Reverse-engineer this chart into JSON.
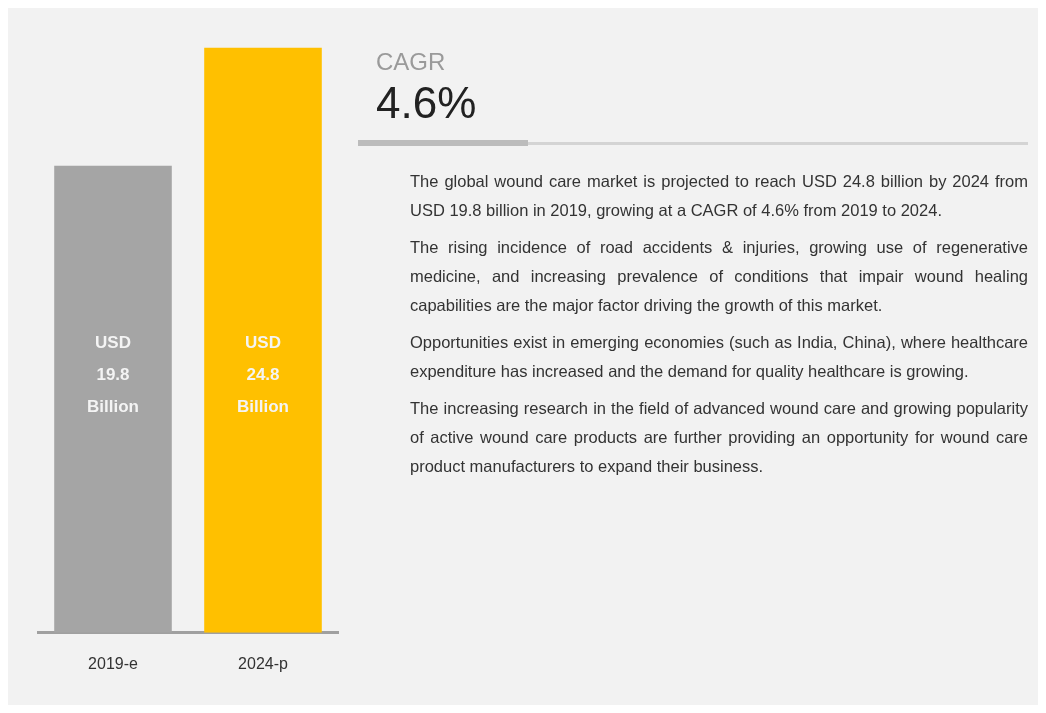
{
  "chart_data": [
    {
      "type": "bar",
      "categories": [
        "2019-e",
        "2024-p"
      ],
      "values": [
        19.8,
        24.8
      ],
      "colors": [
        "#a5a5a5",
        "#ffc000"
      ],
      "value_labels": [
        "USD 19.8 Billion",
        "USD 24.8 Billion"
      ]
    },
    {
      "type": "other",
      "title": "CAGR",
      "subtitle": "4.6%",
      "annotations": [
        "The global wound care market is projected to reach USD 24.8 billion by 2024 from USD 19.8 billion in 2019, growing at a CAGR of 4.6% from 2019 to 2024.",
        "The rising incidence of road accidents & injuries, growing use of regenerative medicine, and increasing prevalence of conditions that impair wound healing capabilities are the major factor driving the growth of this market.",
        "Opportunities exist in emerging economies (such as India, China), where healthcare expenditure has increased and the demand for quality healthcare is growing.",
        "The increasing research in the field of advanced wound care and growing popularity of active wound care products are further providing an opportunity for wound care product manufacturers to expand their business."
      ]
    }
  ]
}
